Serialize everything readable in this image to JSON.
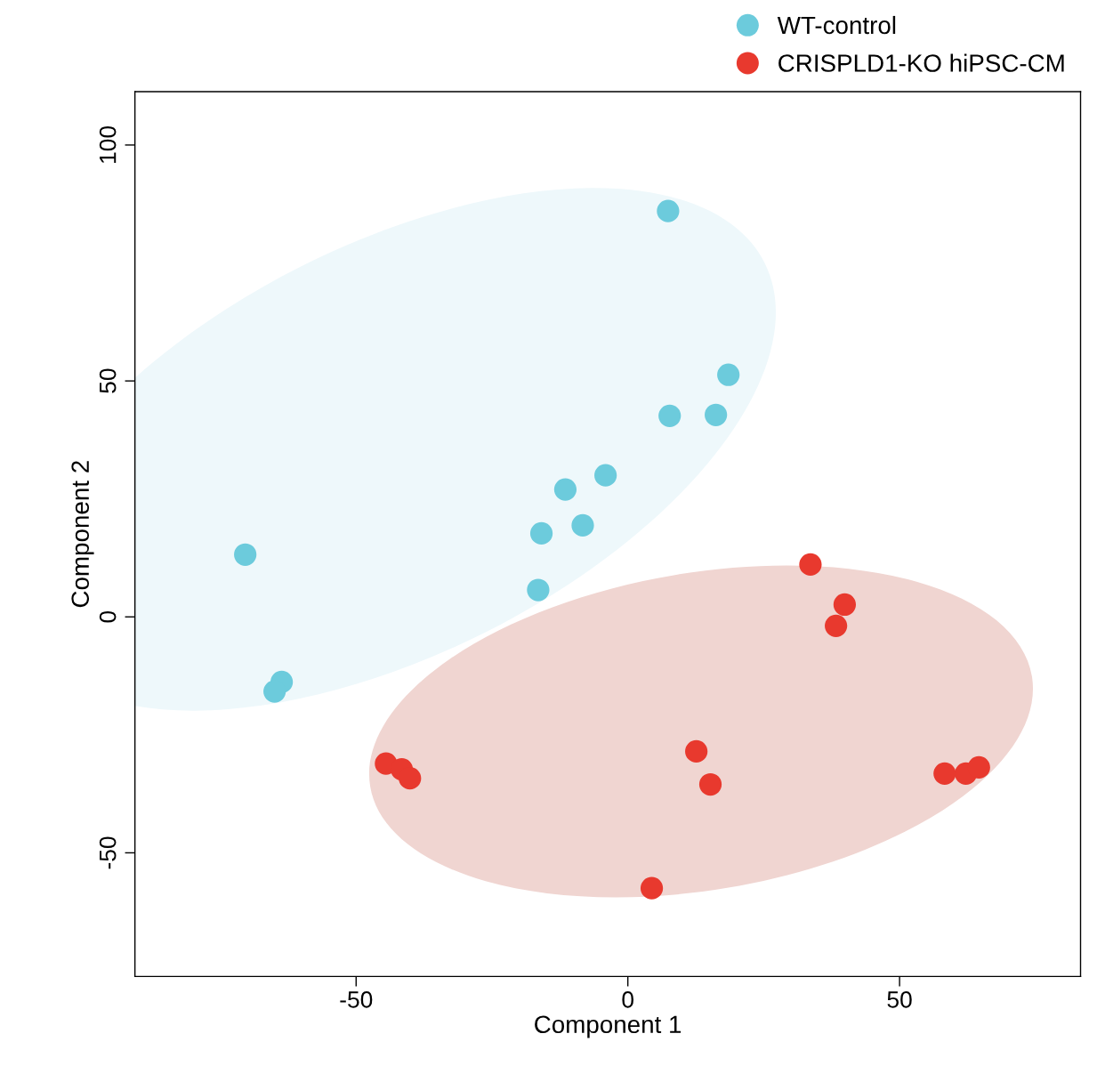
{
  "chart_data": {
    "type": "scatter",
    "xlabel": "Component 1",
    "ylabel": "Component 2",
    "xlim": [
      -90.7,
      83.3
    ],
    "ylim": [
      -76.2,
      111.3
    ],
    "xticks": [
      -50,
      0,
      50
    ],
    "yticks": [
      -50,
      0,
      50,
      100
    ],
    "grid": false,
    "legend": "top right",
    "marker": "circle",
    "series": [
      {
        "name": "WT-control",
        "color": "#6ccbdc",
        "x": [
          7.4,
          18.5,
          7.7,
          16.2,
          -4.1,
          -11.5,
          -8.3,
          -15.9,
          -70.4,
          -16.5,
          -63.7,
          -65.0
        ],
        "values": [
          86.0,
          51.3,
          42.6,
          42.8,
          30.0,
          27.0,
          19.4,
          17.7,
          13.2,
          5.7,
          -13.8,
          -15.8
        ]
      },
      {
        "name": "CRISPLD1-KO hiPSC-CM",
        "color": "#e8392e",
        "x": [
          33.6,
          39.9,
          38.3,
          12.6,
          15.2,
          -44.5,
          -41.6,
          -40.1,
          4.4,
          58.3,
          62.2,
          64.6
        ],
        "values": [
          11.1,
          2.6,
          -1.9,
          -28.5,
          -35.5,
          -31.1,
          -32.3,
          -34.2,
          -57.5,
          -33.2,
          -33.2,
          -31.9
        ]
      }
    ]
  }
}
